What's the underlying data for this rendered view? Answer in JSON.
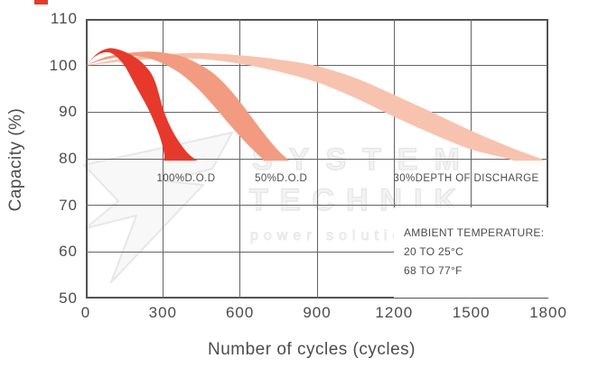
{
  "watermark": {
    "line1": "SYSTEM",
    "line2": "TECHNIK",
    "line3": "power solutions"
  },
  "logo_fragment_color": "#e6392c",
  "colors": {
    "grid": "#636466",
    "frame": "#515254",
    "text": "#4b4c4e",
    "band_100dod": "#e6392c",
    "band_50dod": "#f29b80",
    "band_30dod": "#f8c3ae",
    "watermark": "#e4e4e4"
  },
  "chart_data": {
    "type": "area",
    "title": "",
    "xlabel": "Number of cycles (cycles)",
    "ylabel": "Capacity (%)",
    "xlim": [
      0,
      1800
    ],
    "ylim": [
      50,
      110
    ],
    "x_ticks": [
      0,
      300,
      600,
      900,
      1200,
      1500,
      1800
    ],
    "y_ticks": [
      110,
      100,
      90,
      80,
      70,
      60,
      50
    ],
    "grid": true,
    "legend_position": "none",
    "clip_min_capacity": 79.6,
    "series": [
      {
        "name": "30%DEPTH OF DISCHARGE",
        "color": "#f8c3ae",
        "upper": [
          [
            0,
            100
          ],
          [
            150,
            101.6
          ],
          [
            300,
            102.4
          ],
          [
            450,
            102.7
          ],
          [
            600,
            102.2
          ],
          [
            750,
            101.3
          ],
          [
            900,
            99.9
          ],
          [
            1050,
            97.3
          ],
          [
            1200,
            93.7
          ],
          [
            1350,
            89.9
          ],
          [
            1500,
            86.0
          ],
          [
            1650,
            82.5
          ],
          [
            1780,
            79.8
          ],
          [
            1830,
            78.4
          ]
        ],
        "lower": [
          [
            0,
            100
          ],
          [
            150,
            100.9
          ],
          [
            300,
            101.5
          ],
          [
            450,
            101.4
          ],
          [
            600,
            100.4
          ],
          [
            750,
            98.7
          ],
          [
            900,
            96.4
          ],
          [
            1050,
            93.0
          ],
          [
            1200,
            89.0
          ],
          [
            1350,
            85.3
          ],
          [
            1500,
            82.0
          ],
          [
            1650,
            79.9
          ],
          [
            1705,
            78.4
          ]
        ]
      },
      {
        "name": "50%D.O.D",
        "color": "#f29b80",
        "upper": [
          [
            0,
            100
          ],
          [
            70,
            101.7
          ],
          [
            150,
            102.6
          ],
          [
            230,
            103.0
          ],
          [
            300,
            102.8
          ],
          [
            370,
            102.0
          ],
          [
            430,
            100.6
          ],
          [
            490,
            98.6
          ],
          [
            545,
            95.8
          ],
          [
            600,
            92.2
          ],
          [
            655,
            88.2
          ],
          [
            705,
            84.6
          ],
          [
            755,
            81.4
          ],
          [
            800,
            79.2
          ],
          [
            815,
            78.3
          ]
        ],
        "lower": [
          [
            0,
            100
          ],
          [
            60,
            101.1
          ],
          [
            130,
            101.8
          ],
          [
            200,
            102.0
          ],
          [
            260,
            101.3
          ],
          [
            320,
            99.9
          ],
          [
            380,
            97.8
          ],
          [
            440,
            94.8
          ],
          [
            500,
            91.2
          ],
          [
            560,
            87.3
          ],
          [
            620,
            83.6
          ],
          [
            680,
            80.4
          ],
          [
            725,
            78.3
          ]
        ]
      },
      {
        "name": "100%D.O.D",
        "color": "#e6392c",
        "upper": [
          [
            0,
            100
          ],
          [
            45,
            102.6
          ],
          [
            90,
            103.7
          ],
          [
            135,
            103.3
          ],
          [
            185,
            102.0
          ],
          [
            230,
            100.0
          ],
          [
            268,
            96.8
          ],
          [
            305,
            90.0
          ],
          [
            345,
            85.2
          ],
          [
            395,
            81.3
          ],
          [
            440,
            79.3
          ],
          [
            460,
            78.2
          ]
        ],
        "lower": [
          [
            0,
            100
          ],
          [
            35,
            101.9
          ],
          [
            70,
            102.8
          ],
          [
            105,
            102.5
          ],
          [
            150,
            100.0
          ],
          [
            195,
            95.5
          ],
          [
            240,
            91.0
          ],
          [
            270,
            87.3
          ],
          [
            292,
            84.0
          ],
          [
            306,
            80.8
          ],
          [
            314,
            78.2
          ]
        ]
      }
    ],
    "series_labels": [
      {
        "text": "100%D.O.D",
        "x": 390,
        "y": 75.7
      },
      {
        "text": "50%D.O.D",
        "x": 760,
        "y": 75.7
      },
      {
        "text": "30%DEPTH OF DISCHARGE",
        "x": 1480,
        "y": 75.7
      }
    ],
    "annotation": {
      "lines": [
        "AMBIENT TEMPERATURE:",
        "20 TO 25°C",
        "68 TO 77°F"
      ]
    }
  }
}
